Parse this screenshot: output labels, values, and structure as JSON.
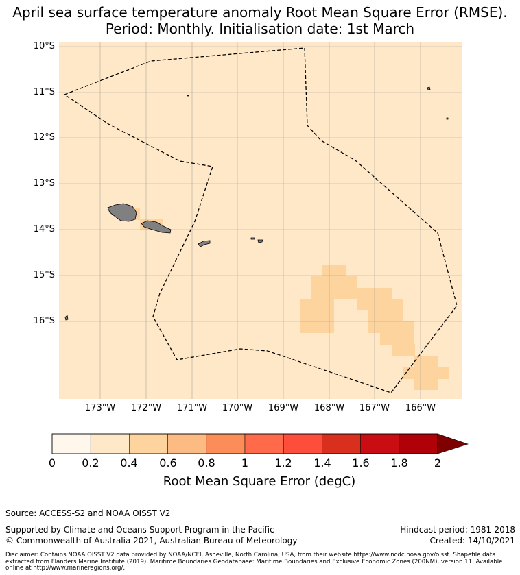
{
  "title": {
    "line1": "April sea surface temperature anomaly Root Mean Square Error (RMSE).",
    "line2": "Period: Monthly. Initialisation date: 1st March"
  },
  "map": {
    "lat_labels": [
      "10°S",
      "11°S",
      "12°S",
      "13°S",
      "14°S",
      "15°S",
      "16°S"
    ],
    "lon_labels": [
      "173°W",
      "172°W",
      "171°W",
      "170°W",
      "169°W",
      "168°W",
      "167°W",
      "166°W"
    ],
    "background_color": "#fee8c8",
    "high_error_color": "#fdd49e",
    "land_color": "#808080",
    "eez_boundary": "dashed"
  },
  "colorbar": {
    "ticks": [
      "0",
      "0.2",
      "0.4",
      "0.6",
      "0.8",
      "1",
      "1.2",
      "1.4",
      "1.6",
      "1.8",
      "2"
    ],
    "colors": [
      "#fff7ec",
      "#fee8c8",
      "#fdd49e",
      "#fdbb84",
      "#fc8d59",
      "#fe6a4a",
      "#fc4e3a",
      "#d92f1e",
      "#c90d12",
      "#b00008"
    ],
    "extend_color": "#7f0000",
    "label": "Root Mean Square Error (degC)"
  },
  "footer": {
    "source": "Source: ACCESS-S2 and NOAA OISST V2",
    "supported": "Supported by Climate and Oceans Support Program in the Pacific",
    "copyright": "© Commonwealth of Australia 2021, Australian Bureau of Meteorology",
    "hindcast": "Hindcast period: 1981-2018",
    "created": "Created: 14/10/2021",
    "disclaimer": "Disclaimer: Contains NOAA OISST V2 data provided by NOAA/NCEI, Asheville, North Carolina, USA, from their website https://www.ncdc.noaa.gov/oisst. Shapefile data extracted from Flanders Marine Institute (2019), Maritime Boundaries Geodatabase: Maritime Boundaries and Exclusive Economic Zones (200NM), version 11. Available online at http://www.marineregions.org/."
  }
}
